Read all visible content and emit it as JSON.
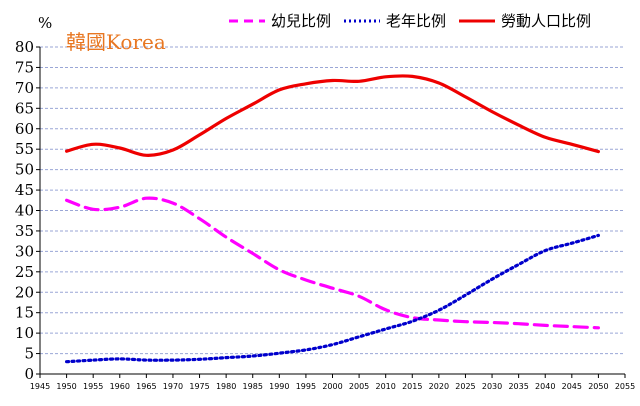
{
  "chart_data": {
    "type": "line",
    "title": "韓國Korea",
    "y_unit": "%",
    "xlabel": "",
    "ylabel": "",
    "xlim": [
      1945,
      2055
    ],
    "ylim": [
      0,
      80
    ],
    "x_ticks": [
      1945,
      1950,
      1955,
      1960,
      1965,
      1970,
      1975,
      1980,
      1985,
      1990,
      1995,
      2000,
      2005,
      2010,
      2015,
      2020,
      2025,
      2030,
      2035,
      2040,
      2045,
      2050,
      2055
    ],
    "y_ticks": [
      0,
      5,
      10,
      15,
      20,
      25,
      30,
      35,
      40,
      45,
      50,
      55,
      60,
      65,
      70,
      75,
      80
    ],
    "grid": "horizontal",
    "legend_position": "top",
    "series": [
      {
        "name": "幼兒比例",
        "color": "#ff00ff",
        "style": "dashed",
        "x": [
          1950,
          1955,
          1960,
          1965,
          1970,
          1975,
          1980,
          1985,
          1990,
          1995,
          2000,
          2005,
          2010,
          2015,
          2020,
          2025,
          2030,
          2035,
          2040,
          2045,
          2050
        ],
        "values": [
          42.5,
          40.3,
          40.8,
          43.0,
          41.8,
          38.0,
          33.5,
          29.5,
          25.5,
          23.0,
          21.0,
          19.0,
          15.7,
          13.8,
          13.2,
          12.8,
          12.6,
          12.3,
          11.9,
          11.6,
          11.3
        ]
      },
      {
        "name": "老年比例",
        "color": "#0000cc",
        "style": "dotted",
        "x": [
          1950,
          1955,
          1960,
          1965,
          1970,
          1975,
          1980,
          1985,
          1990,
          1995,
          2000,
          2005,
          2010,
          2015,
          2020,
          2025,
          2030,
          2035,
          2040,
          2045,
          2050
        ],
        "values": [
          3.0,
          3.4,
          3.7,
          3.4,
          3.4,
          3.6,
          4.0,
          4.4,
          5.1,
          5.9,
          7.2,
          9.1,
          11.0,
          12.9,
          15.6,
          19.3,
          23.2,
          26.8,
          30.2,
          32.0,
          33.9
        ]
      },
      {
        "name": "勞動人口比例",
        "color": "#ee0000",
        "style": "solid",
        "x": [
          1950,
          1955,
          1960,
          1965,
          1970,
          1975,
          1980,
          1985,
          1990,
          1995,
          2000,
          2005,
          2010,
          2015,
          2020,
          2025,
          2030,
          2035,
          2040,
          2045,
          2050
        ],
        "values": [
          54.5,
          56.2,
          55.3,
          53.5,
          54.8,
          58.5,
          62.5,
          66.0,
          69.5,
          71.0,
          71.8,
          71.6,
          72.7,
          72.8,
          71.2,
          67.8,
          64.2,
          60.9,
          57.9,
          56.2,
          54.4
        ]
      }
    ]
  }
}
